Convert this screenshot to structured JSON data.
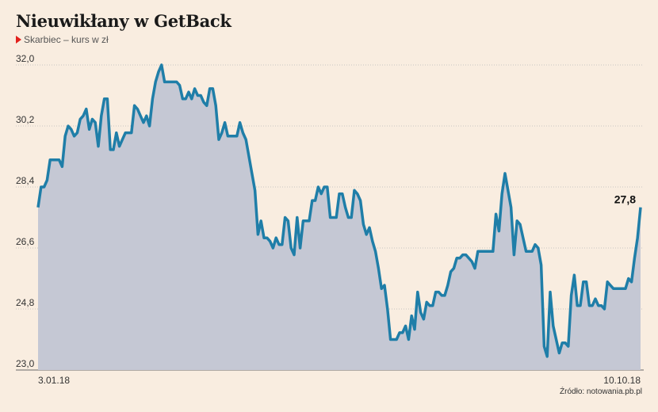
{
  "title": "Nieuwikłany w GetBack",
  "subtitle": "Skarbiec – kurs w zł",
  "source": "Źródło: notowania.pb.pl",
  "colors": {
    "line": "#1f7ea8",
    "area": "#c5c8d4",
    "grid": "#b8b8b8",
    "accent": "#e2201c"
  },
  "chart_data": {
    "type": "area",
    "ylim": [
      23.0,
      32.0
    ],
    "yticks": [
      "23,0",
      "24,8",
      "26,6",
      "28,4",
      "30,2",
      "32,0"
    ],
    "x_labels": {
      "first": "3.01.18",
      "last": "10.10.18"
    },
    "last_value_label": "27,8",
    "grid": true,
    "values": [
      27.8,
      28.4,
      28.4,
      28.6,
      29.2,
      29.2,
      29.2,
      29.2,
      29.0,
      29.9,
      30.2,
      30.1,
      29.9,
      30.0,
      30.4,
      30.5,
      30.7,
      30.1,
      30.4,
      30.3,
      29.6,
      30.5,
      31.0,
      31.0,
      29.5,
      29.5,
      30.0,
      29.6,
      29.8,
      30.0,
      30.0,
      30.0,
      30.8,
      30.7,
      30.5,
      30.3,
      30.5,
      30.2,
      31.0,
      31.5,
      31.8,
      32.0,
      31.5,
      31.5,
      31.5,
      31.5,
      31.5,
      31.4,
      31.0,
      31.0,
      31.2,
      31.0,
      31.3,
      31.1,
      31.1,
      30.9,
      30.8,
      31.3,
      31.3,
      30.8,
      29.8,
      30.0,
      30.3,
      29.9,
      29.9,
      29.9,
      29.9,
      30.3,
      30.0,
      29.8,
      29.3,
      28.8,
      28.3,
      27.0,
      27.4,
      26.9,
      26.9,
      26.8,
      26.6,
      26.9,
      26.7,
      26.7,
      27.5,
      27.4,
      26.6,
      26.4,
      27.5,
      26.6,
      27.4,
      27.4,
      27.4,
      28.0,
      28.0,
      28.4,
      28.2,
      28.4,
      28.4,
      27.5,
      27.5,
      27.5,
      28.2,
      28.2,
      27.8,
      27.5,
      27.5,
      28.3,
      28.2,
      28.0,
      27.3,
      27.0,
      27.2,
      26.8,
      26.5,
      26.0,
      25.4,
      25.5,
      24.8,
      23.9,
      23.9,
      23.9,
      24.1,
      24.1,
      24.3,
      23.9,
      24.6,
      24.2,
      25.3,
      24.7,
      24.5,
      25.0,
      24.9,
      24.9,
      25.3,
      25.3,
      25.2,
      25.2,
      25.5,
      25.9,
      26.0,
      26.3,
      26.3,
      26.4,
      26.4,
      26.3,
      26.2,
      26.0,
      26.5,
      26.5,
      26.5,
      26.5,
      26.5,
      26.5,
      27.6,
      27.1,
      28.2,
      28.8,
      28.3,
      27.8,
      26.4,
      27.4,
      27.3,
      26.9,
      26.5,
      26.5,
      26.5,
      26.7,
      26.6,
      26.1,
      23.7,
      23.4,
      25.3,
      24.3,
      23.9,
      23.5,
      23.8,
      23.8,
      23.7,
      25.2,
      25.8,
      24.9,
      24.9,
      25.6,
      25.6,
      24.9,
      24.9,
      25.1,
      24.9,
      24.9,
      24.8,
      25.6,
      25.5,
      25.4,
      25.4,
      25.4,
      25.4,
      25.4,
      25.7,
      25.6,
      26.3,
      26.9,
      27.8
    ]
  }
}
